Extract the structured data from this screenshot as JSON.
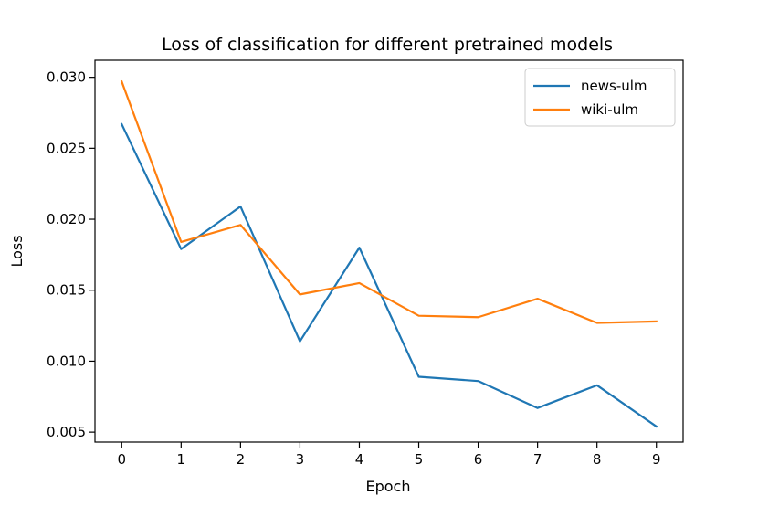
{
  "chart_data": {
    "type": "line",
    "title": "Loss of classification for different pretrained models",
    "xlabel": "Epoch",
    "ylabel": "Loss",
    "x": [
      0,
      1,
      2,
      3,
      4,
      5,
      6,
      7,
      8,
      9
    ],
    "xticks": [
      0,
      1,
      2,
      3,
      4,
      5,
      6,
      7,
      8,
      9
    ],
    "xlim": [
      -0.45,
      9.45
    ],
    "yticks": [
      0.005,
      0.01,
      0.015,
      0.02,
      0.025,
      0.03
    ],
    "ytick_labels": [
      "0.005",
      "0.010",
      "0.015",
      "0.020",
      "0.025",
      "0.030"
    ],
    "ylim": [
      0.0043,
      0.0312
    ],
    "grid": false,
    "legend_position": "top-right",
    "series": [
      {
        "name": "news-ulm",
        "color": "#1f77b4",
        "values": [
          0.0267,
          0.0179,
          0.0209,
          0.0114,
          0.018,
          0.0089,
          0.0086,
          0.0067,
          0.0083,
          0.0054
        ]
      },
      {
        "name": "wiki-ulm",
        "color": "#ff7f0e",
        "values": [
          0.0297,
          0.0184,
          0.0196,
          0.0147,
          0.0155,
          0.0132,
          0.0131,
          0.0144,
          0.0127,
          0.0128
        ]
      }
    ]
  }
}
